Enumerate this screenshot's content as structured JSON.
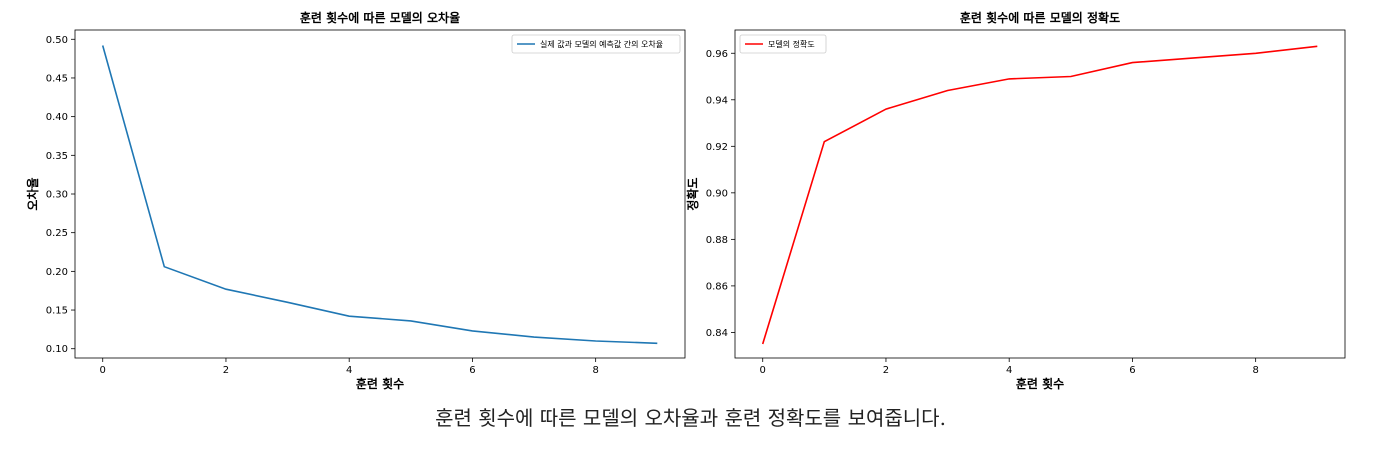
{
  "chart_data": [
    {
      "type": "line",
      "title": "훈련 횟수에 따른 모델의 오차율",
      "xlabel": "훈련 횟수",
      "ylabel": "오차율",
      "xlim": [
        -0.45,
        9.45
      ],
      "ylim": [
        0.088,
        0.512
      ],
      "xticks": [
        0,
        2,
        4,
        6,
        8
      ],
      "yticks": [
        0.1,
        0.15,
        0.2,
        0.25,
        0.3,
        0.35,
        0.4,
        0.45,
        0.5
      ],
      "ytick_labels": [
        "0.10",
        "0.15",
        "0.20",
        "0.25",
        "0.30",
        "0.35",
        "0.40",
        "0.45",
        "0.50"
      ],
      "grid": false,
      "legend": "top-right",
      "series": [
        {
          "name": "실제 값과 모델의 예측값 간의 오차율",
          "color": "#1f77b4",
          "x": [
            0,
            1,
            2,
            3,
            4,
            5,
            6,
            7,
            8,
            9
          ],
          "y": [
            0.492,
            0.206,
            0.177,
            0.16,
            0.142,
            0.136,
            0.123,
            0.115,
            0.11,
            0.107
          ]
        }
      ]
    },
    {
      "type": "line",
      "title": "훈련 횟수에 따른 모델의 정확도",
      "xlabel": "훈련 횟수",
      "ylabel": "정확도",
      "xlim": [
        -0.45,
        9.45
      ],
      "ylim": [
        0.829,
        0.97
      ],
      "xticks": [
        0,
        2,
        4,
        6,
        8
      ],
      "yticks": [
        0.84,
        0.86,
        0.88,
        0.9,
        0.92,
        0.94,
        0.96
      ],
      "ytick_labels": [
        "0.84",
        "0.86",
        "0.88",
        "0.90",
        "0.92",
        "0.94",
        "0.96"
      ],
      "grid": false,
      "legend": "top-left",
      "series": [
        {
          "name": "모델의 정확도",
          "color": "#ff0000",
          "x": [
            0,
            1,
            2,
            3,
            4,
            5,
            6,
            7,
            8,
            9
          ],
          "y": [
            0.835,
            0.922,
            0.936,
            0.944,
            0.949,
            0.95,
            0.956,
            0.958,
            0.96,
            0.963
          ]
        }
      ]
    }
  ],
  "caption": "훈련 횟수에 따른 모델의 오차율과 훈련 정확도를 보여줍니다."
}
